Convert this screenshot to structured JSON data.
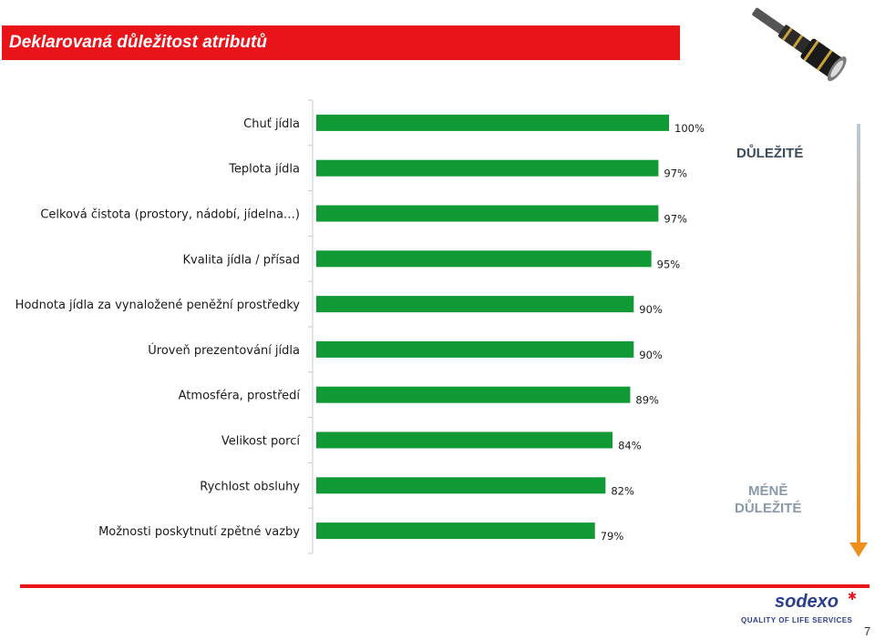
{
  "slide": {
    "title": "Deklarovaná důležitost atributů",
    "page_number": "7"
  },
  "legend": {
    "top_label": "DŮLEŽITÉ",
    "bottom_label_line1": "MÉNĚ",
    "bottom_label_line2": "DŮLEŽITÉ"
  },
  "logo": {
    "brand": "sodexo",
    "tagline": "QUALITY OF LIFE SERVICES"
  },
  "colors": {
    "title_bg": "#e8141a",
    "bar": "#0f9a35",
    "arrow_top": "#bcc8d4",
    "arrow_bottom": "#ee8e1c"
  },
  "chart_data": {
    "type": "bar",
    "orientation": "horizontal",
    "title": "Deklarovaná důležitost atributů",
    "categories": [
      "Chuť jídla",
      "Teplota jídla",
      "Celková čistota (prostory, nádobí, jídelna…)",
      "Kvalita jídla / přísad",
      "Hodnota jídla za vynaložené peněžní prostředky",
      "Úroveň prezentování jídla",
      "Atmosféra, prostředí",
      "Velikost porcí",
      "Rychlost obsluhy",
      "Možnosti poskytnutí zpětné vazby"
    ],
    "values": [
      100,
      97,
      97,
      95,
      90,
      90,
      89,
      84,
      82,
      79
    ],
    "value_labels": [
      "100%",
      "97%",
      "97%",
      "95%",
      "90%",
      "90%",
      "89%",
      "84%",
      "82%",
      "79%"
    ],
    "unit": "%",
    "xlim": [
      0,
      100
    ]
  }
}
